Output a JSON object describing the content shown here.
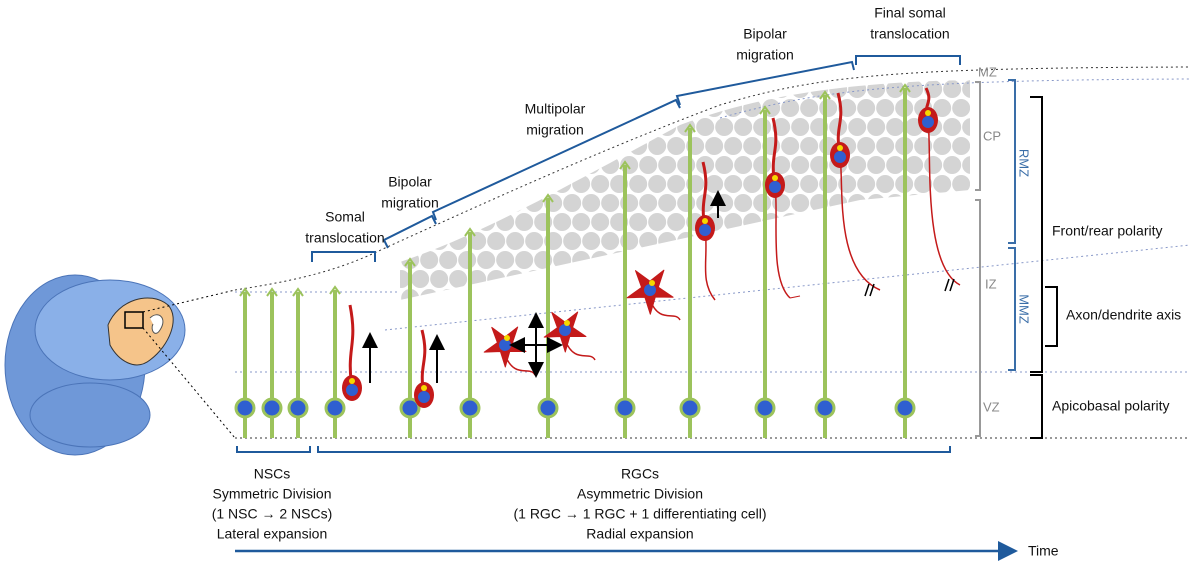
{
  "stages": [
    {
      "lines": [
        "Somal",
        "translocation"
      ]
    },
    {
      "lines": [
        "Bipolar",
        "migration"
      ]
    },
    {
      "lines": [
        "Multipolar",
        "migration"
      ]
    },
    {
      "lines": [
        "Bipolar",
        "migration"
      ]
    },
    {
      "lines": [
        "Final somal",
        "translocation"
      ]
    }
  ],
  "zones": [
    "MZ",
    "CP",
    "IZ",
    "VZ"
  ],
  "subzones": [
    "RMZ",
    "MMZ"
  ],
  "polarities": [
    "Front/rear polarity",
    "Axon/dendrite axis",
    "Apicobasal polarity"
  ],
  "groups": [
    {
      "lines": [
        "NSCs",
        "Symmetric Division",
        "(1 NSC → 2 NSCs)",
        "Lateral expansion"
      ]
    },
    {
      "lines": [
        "RGCs",
        "Asymmetric Division",
        "(1 RGC → 1 RGC + 1 differentiating cell)",
        "Radial expansion"
      ]
    }
  ],
  "time_label": "Time"
}
